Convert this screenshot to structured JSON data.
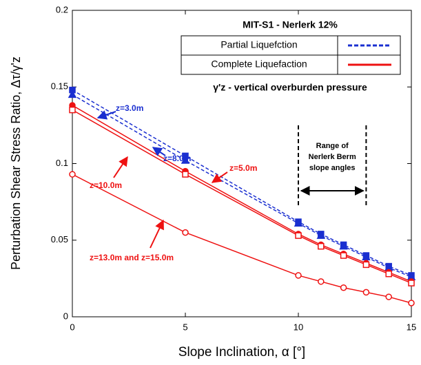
{
  "chart_data": {
    "type": "line",
    "xlabel": "Slope Inclination, α [°]",
    "ylabel": "Perturbation Shear Stress Ratio, Δτ/γ'z",
    "xlim": [
      0,
      15
    ],
    "xticks": [
      0,
      5,
      10,
      15
    ],
    "ylim": [
      0,
      0.2
    ],
    "yticks": [
      0,
      0.05,
      0.1,
      0.15,
      0.2
    ],
    "x": [
      0,
      5,
      10,
      11,
      12,
      13,
      14,
      15
    ],
    "series": [
      {
        "color": "#1a2fd0",
        "dashed": true,
        "marker": "square",
        "filled": true,
        "values": [
          0.148,
          0.105,
          0.062,
          0.054,
          0.047,
          0.04,
          0.033,
          0.027
        ]
      },
      {
        "color": "#1a2fd0",
        "dashed": true,
        "marker": "triangle",
        "filled": true,
        "values": [
          0.145,
          0.102,
          0.061,
          0.053,
          0.046,
          0.039,
          0.032,
          0.026
        ]
      },
      {
        "color": "#ee1111",
        "dashed": false,
        "marker": "circle",
        "filled": true,
        "values": [
          0.138,
          0.095,
          0.054,
          0.047,
          0.041,
          0.035,
          0.029,
          0.023
        ]
      },
      {
        "color": "#ee1111",
        "dashed": false,
        "marker": "square",
        "filled": false,
        "values": [
          0.135,
          0.093,
          0.053,
          0.046,
          0.04,
          0.034,
          0.028,
          0.022
        ]
      },
      {
        "color": "#ee1111",
        "dashed": false,
        "marker": "circle",
        "filled": false,
        "values": [
          0.093,
          0.055,
          0.027,
          0.023,
          0.019,
          0.016,
          0.013,
          0.009
        ]
      }
    ],
    "legend_title": "MIT-S1 - Nerlerk 12%",
    "legend": [
      {
        "label": "Partial Liquefction",
        "color": "#1a2fd0",
        "dashed": true
      },
      {
        "label": "Complete Liquefaction",
        "color": "#ee1111",
        "dashed": false
      }
    ],
    "note": "γ'z - vertical overburden pressure",
    "annotations": [
      {
        "text": "z=3.0m",
        "color": "#1a2fd0"
      },
      {
        "text": "z=8.0m",
        "color": "#1a2fd0"
      },
      {
        "text": "z=10.0m",
        "color": "#ee1111"
      },
      {
        "text": "z=5.0m",
        "color": "#ee1111"
      },
      {
        "text": "z=13.0m and z=15.0m",
        "color": "#ee1111"
      }
    ],
    "range": [
      10,
      13
    ],
    "range_text": [
      "Range of",
      "Nerlerk Berm",
      "slope angles"
    ]
  }
}
